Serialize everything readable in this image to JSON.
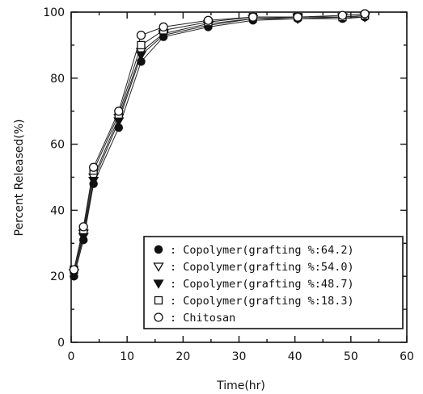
{
  "chart_data": {
    "type": "line",
    "title": "",
    "xlabel": "Time(hr)",
    "ylabel": "Percent Released(%)",
    "xlim": [
      0,
      60
    ],
    "ylim": [
      0,
      100
    ],
    "xticks": [
      0,
      10,
      20,
      30,
      40,
      50,
      60
    ],
    "yticks": [
      0,
      20,
      40,
      60,
      80,
      100
    ],
    "grid": false,
    "legend_position": "bottom-right",
    "x": [
      0.5,
      2.2,
      4,
      8.5,
      12.5,
      16.5,
      24.5,
      32.5,
      40.5,
      48.5,
      52.5
    ],
    "series": [
      {
        "name": "Copolymer(grafting %:64.2)",
        "marker": "filled-circle",
        "values": [
          20,
          31,
          48,
          65,
          85,
          92.5,
          95.5,
          97.5,
          98,
          98,
          98.5
        ]
      },
      {
        "name": "Copolymer(grafting %:54.0)",
        "marker": "open-triangle-down",
        "values": [
          21,
          33,
          50,
          68,
          88,
          93.5,
          96.5,
          98,
          98.5,
          98.5,
          99
        ]
      },
      {
        "name": "Copolymer(grafting %:48.7)",
        "marker": "filled-triangle-down",
        "values": [
          21,
          32,
          49,
          67,
          87,
          93,
          96,
          98,
          98,
          98.5,
          98.5
        ]
      },
      {
        "name": "Copolymer(grafting %:18.3)",
        "marker": "open-square",
        "values": [
          22,
          34,
          52,
          69,
          90,
          94.5,
          97,
          98.5,
          98.5,
          98.5,
          99
        ]
      },
      {
        "name": "Chitosan",
        "marker": "open-circle",
        "values": [
          22,
          35,
          53,
          70,
          93,
          95.5,
          97.5,
          98.5,
          98.5,
          99,
          99.5
        ]
      }
    ]
  }
}
